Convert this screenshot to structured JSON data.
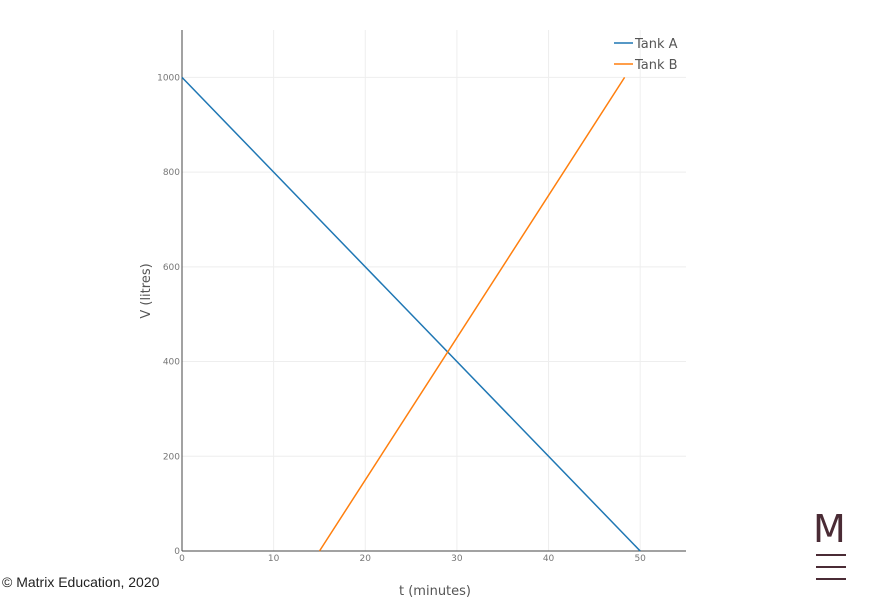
{
  "chart_data": {
    "type": "line",
    "xlabel": "t (minutes)",
    "ylabel": "V (litres)",
    "xlim": [
      0,
      55
    ],
    "ylim": [
      0,
      1100
    ],
    "x_ticks": [
      0,
      10,
      20,
      30,
      40,
      50
    ],
    "y_ticks": [
      0,
      200,
      400,
      600,
      800,
      1000
    ],
    "grid": true,
    "legend_position": "top-right",
    "series": [
      {
        "name": "Tank A",
        "color": "#1f77b4",
        "x": [
          0,
          50
        ],
        "y": [
          1000,
          0
        ]
      },
      {
        "name": "Tank B",
        "color": "#ff7f0e",
        "x": [
          15,
          48.3
        ],
        "y": [
          0,
          1000
        ]
      }
    ]
  },
  "footer": {
    "copyright": "© Matrix Education, 2020",
    "logo_letter": "M"
  }
}
